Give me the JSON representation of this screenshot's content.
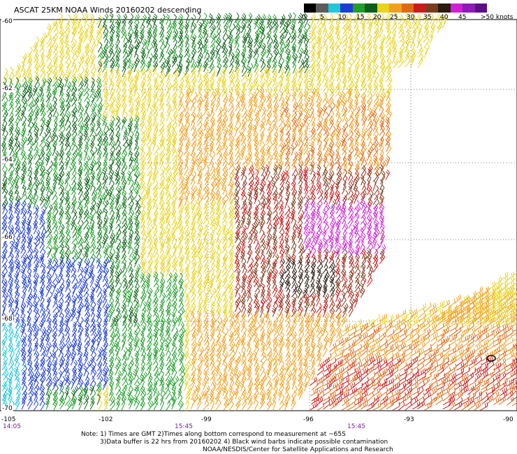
{
  "title": "ASCAT 25KM NOAA Winds 20160202 descending",
  "colorbar": {
    "labels": [
      "0",
      "5",
      "10",
      "15",
      "20",
      "25",
      "30",
      "35",
      "40",
      "45",
      ">50 knots"
    ],
    "colors": [
      "#000000",
      "#5c5c5c",
      "#22c7d9",
      "#1d3cd6",
      "#1f9e2a",
      "#0b5e14",
      "#e8d21a",
      "#f2a01c",
      "#e06a14",
      "#cc1a1a",
      "#7a3c1c",
      "#2a1a10",
      "#d020d6",
      "#8e1ab8",
      "#5a0f86"
    ]
  },
  "lat_labels": [
    "-60",
    "-62",
    "-64",
    "-66",
    "-68",
    "-70"
  ],
  "lon_labels": [
    "-105",
    "-102",
    "-99",
    "-96",
    "-93",
    "-90"
  ],
  "time_labels": [
    "14:05",
    "15:45",
    "15:45"
  ],
  "notes": {
    "line1": "Note: 1) Times are GMT 2)Times along bottom correspond to measurement at ~65S",
    "line2": "3)Data buffer is 22 hrs from 20160202 4) Black wind barbs indicate possible contamination",
    "line3": "NOAA/NESDIS/Center for Satellite Applications and Research"
  }
}
